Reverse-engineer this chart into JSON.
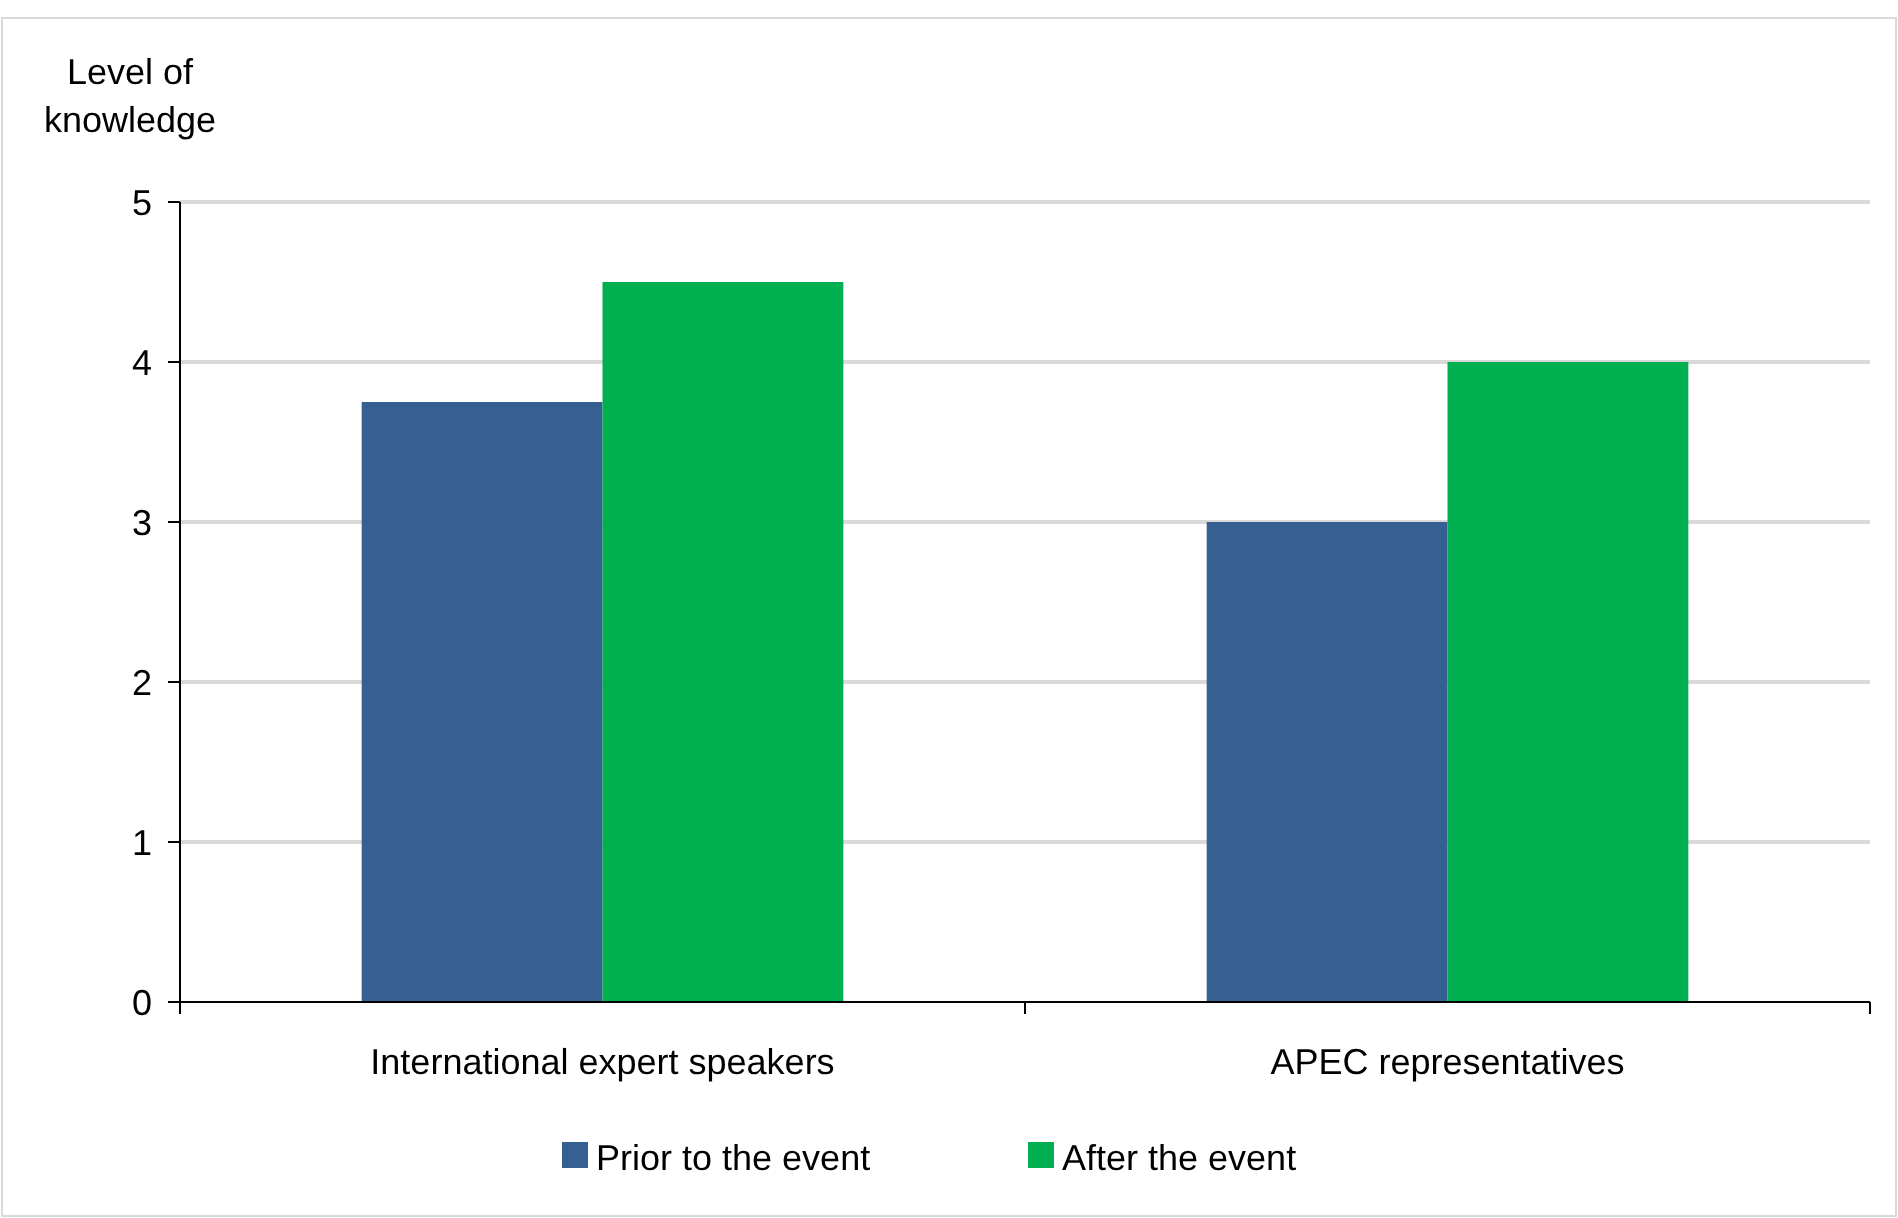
{
  "chart_data": {
    "type": "bar",
    "ylabel": "Level of knowledge",
    "categories": [
      "International expert speakers",
      "APEC representatives"
    ],
    "series": [
      {
        "name": "Prior to the event",
        "color": "#376092",
        "values": [
          3.75,
          3
        ]
      },
      {
        "name": "After the event",
        "color": "#00b050",
        "values": [
          4.5,
          4
        ]
      }
    ],
    "ylim": [
      0,
      5
    ],
    "yticks": [
      0,
      1,
      2,
      3,
      4,
      5
    ],
    "grid": "y",
    "legend": "bottom"
  }
}
